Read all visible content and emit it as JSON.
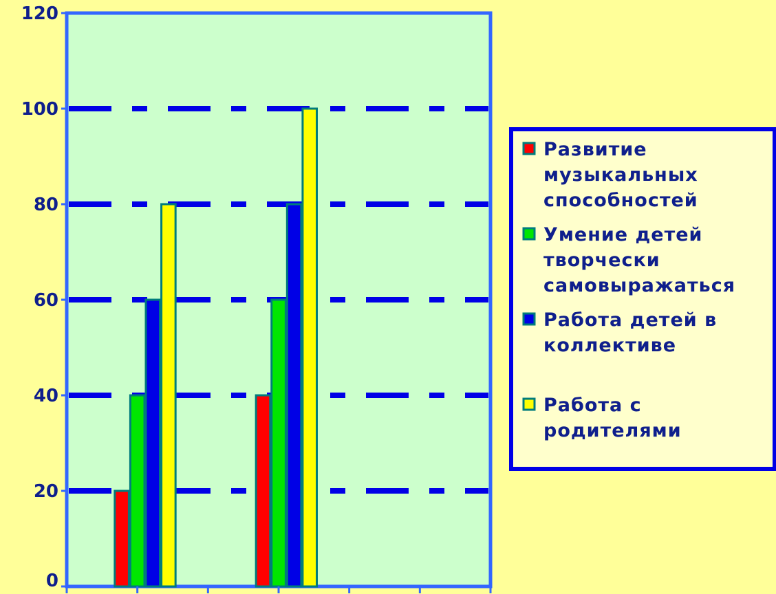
{
  "chart_data": {
    "type": "bar",
    "categories": [
      "",
      "",
      ""
    ],
    "series": [
      {
        "name": "Развитие музыкальных способностей",
        "values": [
          20,
          40,
          null
        ],
        "color": "#FF0000"
      },
      {
        "name": "Умение детей творчески самовыражаться",
        "values": [
          40,
          60,
          null
        ],
        "color": "#00E600"
      },
      {
        "name": "Работа детей в коллективе",
        "values": [
          60,
          80,
          null
        ],
        "color": "#0000E6"
      },
      {
        "name": "Работа с родителями",
        "values": [
          80,
          100,
          null
        ],
        "color": "#FFFF00"
      }
    ],
    "legend_lines": [
      [
        "Развитие",
        "музыкальных",
        "способностей"
      ],
      [
        "Умение детей",
        "творчески",
        "самовыражаться"
      ],
      [
        "Работа детей в",
        "коллективе"
      ],
      [
        "Работа с",
        "родителями"
      ]
    ],
    "y_ticks": [
      0,
      20,
      40,
      60,
      80,
      100,
      120
    ],
    "ylim": [
      0,
      120
    ],
    "title": "",
    "xlabel": "",
    "ylabel": "",
    "grid": true,
    "legend_position": "right",
    "colors": {
      "page_background": "#FFFF99",
      "plot_background": "#CCFFCC",
      "axis": "#3366FF",
      "grid": "#0000E6",
      "bar_outline": "#007C7C",
      "legend_background": "#FFFFCC",
      "legend_border": "#0000E6",
      "text": "#0F1F8C"
    }
  }
}
